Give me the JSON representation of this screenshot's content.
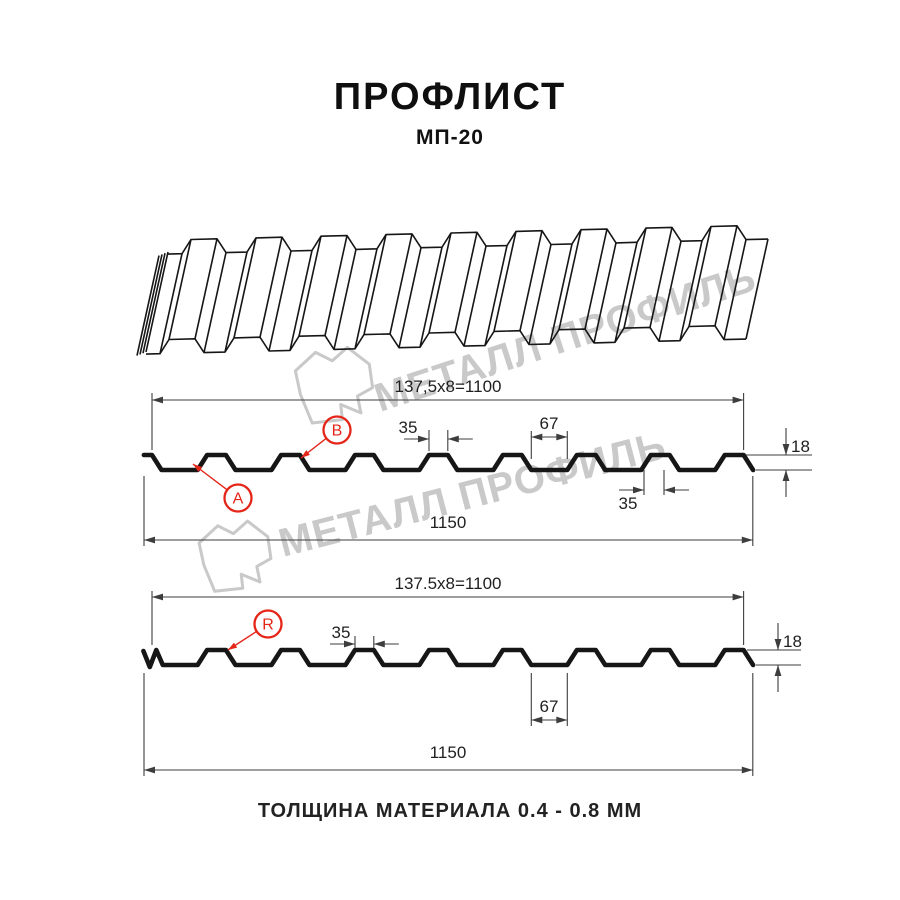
{
  "header": {
    "title": "ПРОФЛИСТ",
    "subtitle": "МП-20"
  },
  "watermark": {
    "brand": "МЕТАЛЛ ПРОФИЛЬ"
  },
  "drawing": {
    "view_3d": {
      "name": "profile-sheet-perspective-view"
    },
    "sections": [
      {
        "name": "cross-section-A-B",
        "dimensions": {
          "pitch_formula": "137,5x8=1100",
          "rib_top_width": "35",
          "valley_width": "67",
          "rib_bottom_width": "35",
          "profile_height": "18",
          "overall_width": "1150"
        },
        "point_labels": [
          {
            "letter": "B"
          },
          {
            "letter": "A"
          }
        ]
      },
      {
        "name": "cross-section-R",
        "dimensions": {
          "pitch_formula": "137.5x8=1100",
          "rib_top_width": "35",
          "valley_width": "67",
          "profile_height": "18",
          "overall_width": "1150"
        },
        "point_labels": [
          {
            "letter": "R"
          }
        ]
      }
    ]
  },
  "footer": {
    "text": "ТОЛЩИНА МАТЕРИАЛА 0.4 - 0.8 ММ"
  },
  "colors": {
    "ink": "#161616",
    "dim": "#3d3d3d",
    "red": "#e52518",
    "watermark": "#c9c9c9"
  }
}
